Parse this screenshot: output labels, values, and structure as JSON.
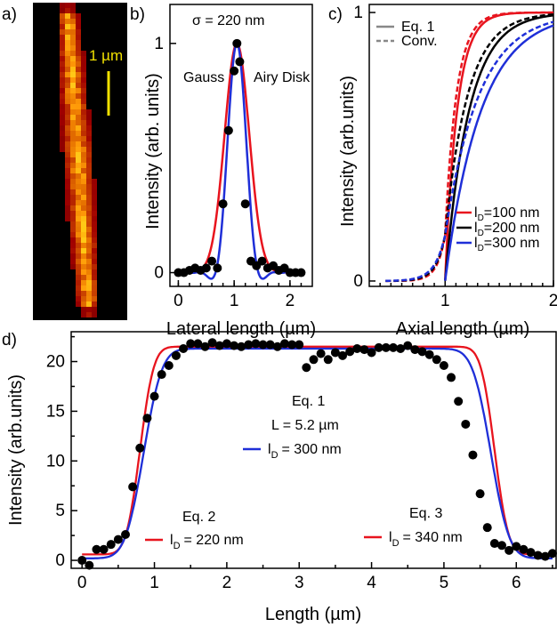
{
  "colors": {
    "red": "#e8141e",
    "black": "#000000",
    "blue": "#1f2fd8",
    "gray": "#888888",
    "scalebar": "#f0e000"
  },
  "panel_labels": [
    "a)",
    "b)",
    "c)",
    "d)"
  ],
  "image_a": {
    "scalebar_label": "1 µm"
  },
  "chart_data": [
    {
      "id": "b",
      "type": "line",
      "xlabel": "Lateral length (µm)",
      "ylabel": "Intensity (arb. units)",
      "xlim": [
        -0.15,
        2.4
      ],
      "ylim": [
        -0.06,
        1.17
      ],
      "xticks": [
        0,
        1,
        2
      ],
      "yticks": [
        0,
        1
      ],
      "annotations": {
        "sigma": "σ = 220 nm",
        "gauss": "Gauss",
        "airy": "Airy Disk"
      },
      "series": [
        {
          "name": "Gauss",
          "color": "red",
          "kind": "gauss",
          "center": 1.05,
          "sigma": 0.22,
          "amplitude": 1.0
        },
        {
          "name": "Airy Disk",
          "color": "blue",
          "kind": "airy",
          "center": 1.05,
          "sigma": 0.22,
          "amplitude": 1.0
        }
      ],
      "points": {
        "x": [
          0.0,
          0.1,
          0.2,
          0.3,
          0.4,
          0.5,
          0.6,
          0.7,
          0.8,
          0.9,
          1.0,
          1.05,
          1.1,
          1.2,
          1.3,
          1.4,
          1.5,
          1.6,
          1.7,
          1.8,
          1.9,
          2.0,
          2.1,
          2.2
        ],
        "y": [
          0.0,
          0.0,
          0.01,
          0.02,
          0.01,
          0.02,
          0.05,
          0.02,
          0.3,
          0.62,
          0.88,
          1.0,
          0.92,
          0.3,
          0.05,
          0.03,
          0.05,
          0.02,
          0.03,
          0.01,
          0.02,
          0.0,
          0.0,
          0.0
        ]
      }
    },
    {
      "id": "c",
      "type": "line",
      "xlabel": "Axial length (µm)",
      "ylabel": "Intensity (arb.units)",
      "xlim": [
        0.3,
        2.0
      ],
      "ylim": [
        -0.02,
        1.03
      ],
      "xticks": [
        1,
        2
      ],
      "yticks": [
        0,
        1
      ],
      "legend_top": [
        {
          "label": "Eq. 1",
          "style": "solid"
        },
        {
          "label": "Conv.",
          "style": "dashed"
        }
      ],
      "legend_bottom": [
        {
          "label": "l",
          "sub": "D",
          "value": "=100 nm",
          "color": "red"
        },
        {
          "label": "l",
          "sub": "D",
          "value": "=200 nm",
          "color": "black"
        },
        {
          "label": "l",
          "sub": "D",
          "value": "=300 nm",
          "color": "blue"
        }
      ],
      "series": [
        {
          "name": "Eq. 1 lD=100 nm",
          "color": "red",
          "style": "solid",
          "lD": 0.1
        },
        {
          "name": "Eq. 1 lD=200 nm",
          "color": "black",
          "style": "solid",
          "lD": 0.2
        },
        {
          "name": "Eq. 1 lD=300 nm",
          "color": "blue",
          "style": "solid",
          "lD": 0.3
        },
        {
          "name": "Conv. lD=100 nm",
          "color": "red",
          "style": "dashed",
          "lD": 0.1
        },
        {
          "name": "Conv. lD=200 nm",
          "color": "black",
          "style": "dashed",
          "lD": 0.2
        },
        {
          "name": "Conv. lD=300 nm",
          "color": "blue",
          "style": "dashed",
          "lD": 0.3
        }
      ]
    },
    {
      "id": "d",
      "type": "line",
      "xlabel": "Length (µm)",
      "ylabel": "Intensity (arb.units)",
      "xlim": [
        -0.15,
        6.55
      ],
      "ylim": [
        -0.8,
        23.0
      ],
      "xticks": [
        0,
        1,
        2,
        3,
        4,
        5,
        6
      ],
      "yticks": [
        0,
        5,
        10,
        15,
        20
      ],
      "annotations": {
        "eq1": "Eq. 1",
        "L": "L  = 5.2 µm",
        "eq1_lD": "= 300 nm",
        "eq2": "Eq. 2",
        "eq2_lD": "= 220 nm",
        "eq3": "Eq. 3",
        "eq3_lD": "= 340 nm",
        "lD_symbol": "l",
        "lD_sub": "D"
      },
      "series": [
        {
          "name": "Eq. 2",
          "color": "red",
          "rise": 0.8,
          "fall": 5.7,
          "w": 0.15,
          "top": 21.5,
          "base": 0.6
        },
        {
          "name": "Eq. 1",
          "color": "blue",
          "rise": 0.85,
          "fall": 5.65,
          "w": 0.2,
          "top": 21.3,
          "base": 0.2
        }
      ],
      "points": {
        "x": [
          0.0,
          0.1,
          0.2,
          0.3,
          0.4,
          0.5,
          0.6,
          0.7,
          0.8,
          0.9,
          1.0,
          1.1,
          1.2,
          1.3,
          1.4,
          1.5,
          1.6,
          1.7,
          1.8,
          1.9,
          2.0,
          2.1,
          2.2,
          2.3,
          2.4,
          2.5,
          2.6,
          2.7,
          2.8,
          2.9,
          3.0,
          3.1,
          3.2,
          3.3,
          3.4,
          3.5,
          3.6,
          3.7,
          3.8,
          3.9,
          4.0,
          4.1,
          4.2,
          4.3,
          4.4,
          4.5,
          4.6,
          4.7,
          4.8,
          4.9,
          5.0,
          5.1,
          5.2,
          5.3,
          5.4,
          5.5,
          5.6,
          5.7,
          5.8,
          5.9,
          6.0,
          6.1,
          6.2,
          6.3,
          6.4,
          6.5
        ],
        "y": [
          0.0,
          -0.5,
          1.1,
          1.1,
          1.6,
          2.1,
          2.6,
          7.4,
          11.3,
          14.3,
          16.5,
          18.7,
          19.6,
          20.6,
          21.3,
          21.8,
          21.8,
          21.5,
          21.9,
          21.6,
          21.8,
          21.6,
          21.5,
          21.7,
          21.8,
          21.7,
          21.7,
          21.5,
          21.8,
          21.7,
          21.7,
          19.4,
          20.2,
          20.8,
          20.2,
          20.9,
          20.6,
          21.0,
          21.3,
          21.2,
          20.9,
          21.4,
          21.4,
          21.4,
          21.3,
          21.6,
          21.2,
          21.0,
          20.7,
          20.2,
          19.6,
          18.4,
          16.0,
          13.7,
          10.6,
          6.7,
          3.3,
          1.7,
          1.5,
          1.0,
          1.4,
          1.1,
          0.8,
          0.5,
          0.4,
          0.7
        ]
      }
    }
  ]
}
